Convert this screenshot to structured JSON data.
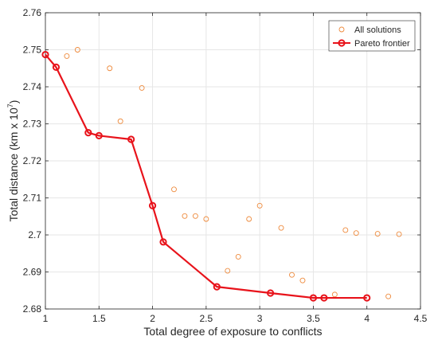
{
  "chart_data": {
    "type": "scatter",
    "xlabel": "Total degree of exposure to conflicts",
    "ylabel_base": "Total distance (km x 10",
    "ylabel_exp": "7",
    "ylabel_tail": ")",
    "xlim": [
      1,
      4.5
    ],
    "ylim": [
      2.68,
      2.76
    ],
    "xticks": [
      1,
      1.5,
      2,
      2.5,
      3,
      3.5,
      4,
      4.5
    ],
    "xtick_labels": [
      "1",
      "1.5",
      "2",
      "2.5",
      "3",
      "3.5",
      "4",
      "4.5"
    ],
    "yticks": [
      2.68,
      2.69,
      2.7,
      2.71,
      2.72,
      2.73,
      2.74,
      2.75,
      2.76
    ],
    "ytick_labels": [
      "2.68",
      "2.69",
      "2.7",
      "2.71",
      "2.72",
      "2.73",
      "2.74",
      "2.75",
      "2.76"
    ],
    "grid": true,
    "legend_position": "top-right",
    "series": [
      {
        "name": "All solutions",
        "style": "markers",
        "color": "#EE8A3C",
        "points": [
          {
            "x": 1.2,
            "y": 2.7483
          },
          {
            "x": 1.3,
            "y": 2.75
          },
          {
            "x": 1.6,
            "y": 2.745
          },
          {
            "x": 1.7,
            "y": 2.7307
          },
          {
            "x": 1.9,
            "y": 2.7397
          },
          {
            "x": 2.2,
            "y": 2.7123
          },
          {
            "x": 2.3,
            "y": 2.7051
          },
          {
            "x": 2.4,
            "y": 2.7051
          },
          {
            "x": 2.5,
            "y": 2.7043
          },
          {
            "x": 2.7,
            "y": 2.6903
          },
          {
            "x": 2.8,
            "y": 2.6941
          },
          {
            "x": 2.9,
            "y": 2.7043
          },
          {
            "x": 3.0,
            "y": 2.7079
          },
          {
            "x": 3.2,
            "y": 2.7019
          },
          {
            "x": 3.3,
            "y": 2.6892
          },
          {
            "x": 3.4,
            "y": 2.6877
          },
          {
            "x": 3.7,
            "y": 2.6839
          },
          {
            "x": 3.8,
            "y": 2.7013
          },
          {
            "x": 3.9,
            "y": 2.7005
          },
          {
            "x": 4.1,
            "y": 2.7003
          },
          {
            "x": 4.2,
            "y": 2.6834
          },
          {
            "x": 4.3,
            "y": 2.7002
          }
        ]
      },
      {
        "name": "Pareto frontier",
        "style": "line-markers",
        "color": "#E8131B",
        "points": [
          {
            "x": 1.0,
            "y": 2.7487
          },
          {
            "x": 1.1,
            "y": 2.7453
          },
          {
            "x": 1.4,
            "y": 2.7276
          },
          {
            "x": 1.5,
            "y": 2.7268
          },
          {
            "x": 1.8,
            "y": 2.7258
          },
          {
            "x": 2.0,
            "y": 2.7079
          },
          {
            "x": 2.1,
            "y": 2.6981
          },
          {
            "x": 2.6,
            "y": 2.686
          },
          {
            "x": 3.1,
            "y": 2.6843
          },
          {
            "x": 3.5,
            "y": 2.683
          },
          {
            "x": 3.6,
            "y": 2.683
          },
          {
            "x": 4.0,
            "y": 2.683
          }
        ]
      }
    ]
  }
}
